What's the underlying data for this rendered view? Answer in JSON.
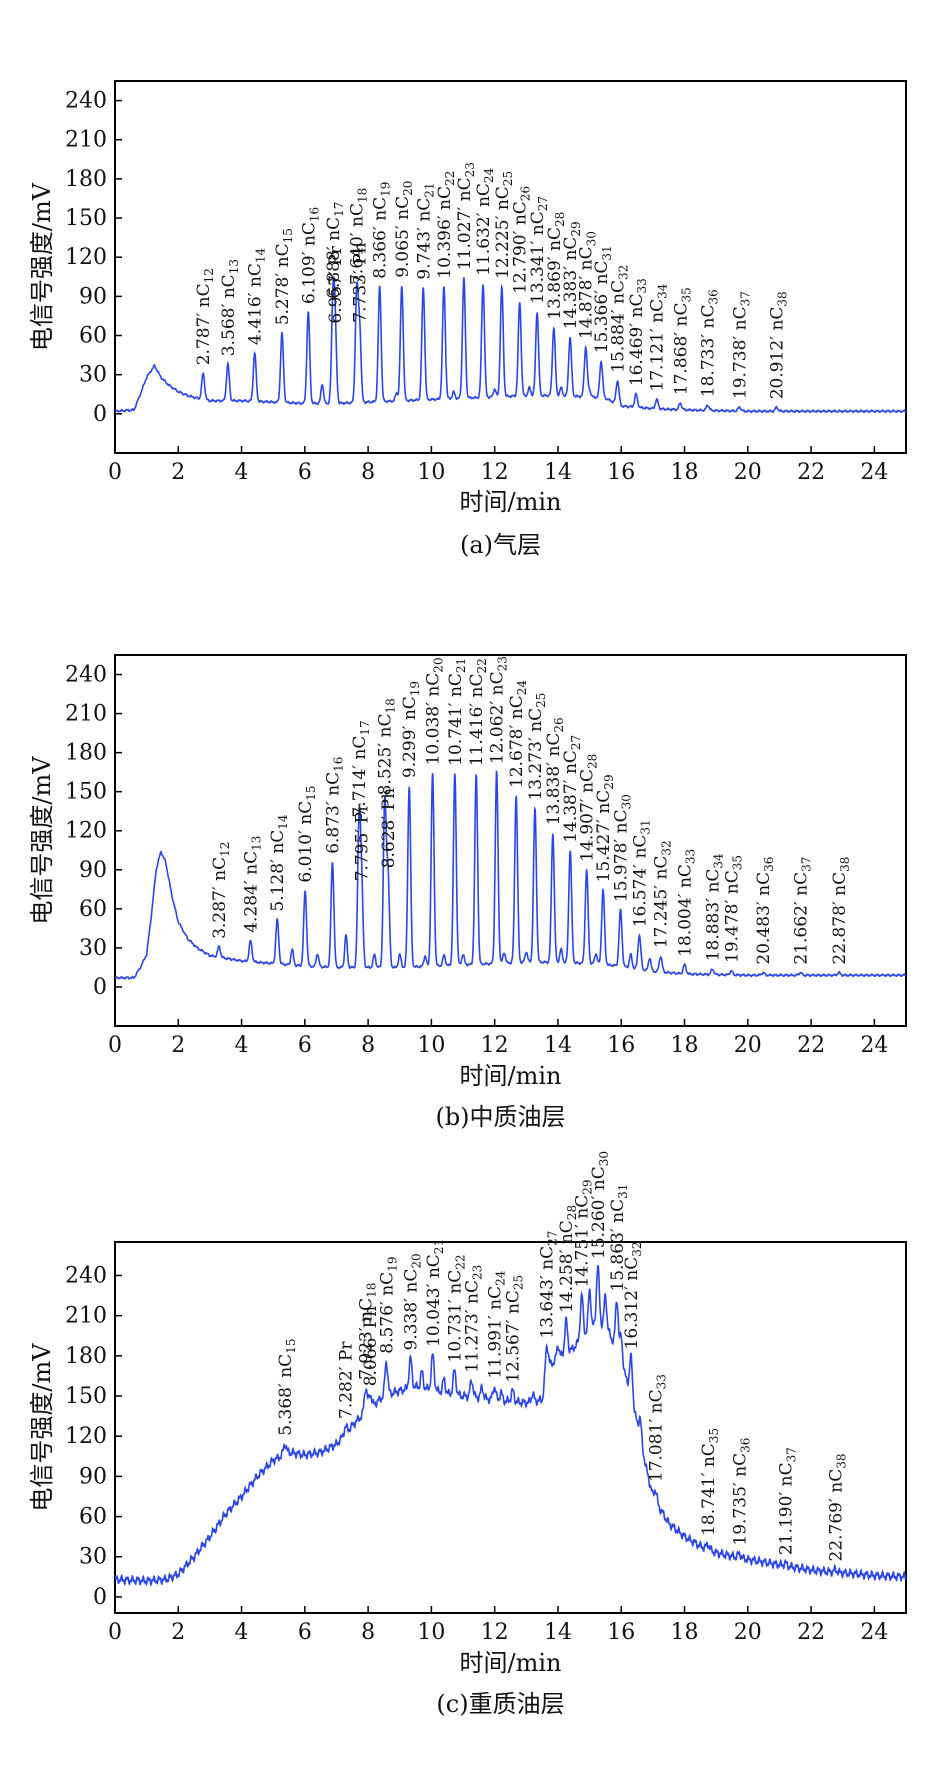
{
  "colors": {
    "line": "#2a46e6",
    "axis": "#000000",
    "text": "#111111"
  },
  "chart_data": [
    {
      "type": "line",
      "caption": "(a)气层",
      "xlabel": "时间/min",
      "ylabel": "电信号强度/mV",
      "xlim": [
        0,
        25
      ],
      "ylim": [
        -30,
        255
      ],
      "xticks": [
        0,
        2,
        4,
        6,
        8,
        10,
        12,
        14,
        16,
        18,
        20,
        22,
        24
      ],
      "yticks": [
        0,
        30,
        60,
        90,
        120,
        150,
        180,
        210,
        240
      ],
      "grid": false,
      "baseline": [
        [
          0,
          2
        ],
        [
          0.6,
          3
        ],
        [
          0.8,
          15
        ],
        [
          1.0,
          28
        ],
        [
          1.25,
          37
        ],
        [
          1.45,
          28
        ],
        [
          1.7,
          22
        ],
        [
          2.0,
          17
        ],
        [
          2.3,
          14
        ],
        [
          2.6,
          12
        ],
        [
          3.0,
          10
        ],
        [
          3.5,
          10
        ],
        [
          4,
          10
        ],
        [
          5,
          9
        ],
        [
          6,
          8
        ],
        [
          7,
          8
        ],
        [
          8,
          9
        ],
        [
          9,
          10
        ],
        [
          10,
          11
        ],
        [
          11,
          12
        ],
        [
          12,
          13
        ],
        [
          13,
          14
        ],
        [
          14,
          14
        ],
        [
          15,
          13
        ],
        [
          15.5,
          12
        ],
        [
          16,
          6
        ],
        [
          17,
          4
        ],
        [
          18,
          3
        ],
        [
          20,
          2
        ],
        [
          22,
          2
        ],
        [
          25,
          2
        ]
      ],
      "peaks": [
        {
          "rt": 2.787,
          "label": "2.787′ nC",
          "sub": "12",
          "h": 20
        },
        {
          "rt": 3.568,
          "label": "3.568′ nC",
          "sub": "13",
          "h": 28
        },
        {
          "rt": 4.416,
          "label": "4.416′ nC",
          "sub": "14",
          "h": 37
        },
        {
          "rt": 5.278,
          "label": "5.278′ nC",
          "sub": "15",
          "h": 53
        },
        {
          "rt": 6.109,
          "label": "6.109′ nC",
          "sub": "16",
          "h": 70
        },
        {
          "rt": 6.888,
          "label": "6.888′ nC",
          "sub": "17",
          "h": 74
        },
        {
          "rt": 6.957,
          "label": "6.957′ Pr",
          "sub": "",
          "h": 55
        },
        {
          "rt": 7.64,
          "label": "7.640′ nC",
          "sub": "18",
          "h": 84
        },
        {
          "rt": 7.733,
          "label": "7.733′ Ph",
          "sub": "",
          "h": 55
        },
        {
          "rt": 8.366,
          "label": "8.366′ nC",
          "sub": "19",
          "h": 88
        },
        {
          "rt": 9.065,
          "label": "9.065′ nC",
          "sub": "20",
          "h": 88
        },
        {
          "rt": 9.743,
          "label": "9.743′ nC",
          "sub": "21",
          "h": 86
        },
        {
          "rt": 10.396,
          "label": "10.396′ nC",
          "sub": "22",
          "h": 86
        },
        {
          "rt": 11.027,
          "label": "11.027′ nC",
          "sub": "23",
          "h": 92
        },
        {
          "rt": 11.632,
          "label": "11.632′ nC",
          "sub": "24",
          "h": 87
        },
        {
          "rt": 12.225,
          "label": "12.225′ nC",
          "sub": "25",
          "h": 84
        },
        {
          "rt": 12.79,
          "label": "12.790′ nC",
          "sub": "26",
          "h": 72
        },
        {
          "rt": 13.341,
          "label": "13.341′ nC",
          "sub": "27",
          "h": 64
        },
        {
          "rt": 13.869,
          "label": "13.869′ nC",
          "sub": "28",
          "h": 52
        },
        {
          "rt": 14.383,
          "label": "14.383′ nC",
          "sub": "29",
          "h": 45
        },
        {
          "rt": 14.878,
          "label": "14.878′ nC",
          "sub": "30",
          "h": 38
        },
        {
          "rt": 15.366,
          "label": "15.366′ nC",
          "sub": "31",
          "h": 28
        },
        {
          "rt": 15.884,
          "label": "15.884′ nC",
          "sub": "32",
          "h": 18
        },
        {
          "rt": 16.469,
          "label": "16.469′ nC",
          "sub": "33",
          "h": 10
        },
        {
          "rt": 17.121,
          "label": "17.121′ nC",
          "sub": "34",
          "h": 7
        },
        {
          "rt": 17.868,
          "label": "17.868′ nC",
          "sub": "35",
          "h": 5
        },
        {
          "rt": 18.733,
          "label": "18.733′ nC",
          "sub": "36",
          "h": 4
        },
        {
          "rt": 19.738,
          "label": "19.738′ nC",
          "sub": "37",
          "h": 3
        },
        {
          "rt": 20.912,
          "label": "20.912′ nC",
          "sub": "38",
          "h": 3
        }
      ],
      "minor": [
        [
          6.55,
          15
        ],
        [
          8.9,
          6
        ],
        [
          10.7,
          5
        ],
        [
          12.0,
          6
        ],
        [
          13.1,
          6
        ],
        [
          14.1,
          6
        ],
        [
          15.0,
          5
        ]
      ]
    },
    {
      "type": "line",
      "caption": "(b)中质油层",
      "xlabel": "时间/min",
      "ylabel": "电信号强度/mV",
      "xlim": [
        0,
        25
      ],
      "ylim": [
        -30,
        255
      ],
      "xticks": [
        0,
        2,
        4,
        6,
        8,
        10,
        12,
        14,
        16,
        18,
        20,
        22,
        24
      ],
      "yticks": [
        0,
        30,
        60,
        90,
        120,
        150,
        180,
        210,
        240
      ],
      "grid": false,
      "baseline": [
        [
          0,
          7
        ],
        [
          0.6,
          7
        ],
        [
          0.8,
          15
        ],
        [
          1.0,
          25
        ],
        [
          1.15,
          55
        ],
        [
          1.3,
          90
        ],
        [
          1.45,
          104
        ],
        [
          1.6,
          96
        ],
        [
          1.8,
          70
        ],
        [
          2.0,
          50
        ],
        [
          2.3,
          37
        ],
        [
          2.6,
          30
        ],
        [
          3.0,
          24
        ],
        [
          3.5,
          22
        ],
        [
          4.0,
          20
        ],
        [
          5,
          18
        ],
        [
          6,
          16
        ],
        [
          7,
          15
        ],
        [
          8,
          15
        ],
        [
          9,
          15
        ],
        [
          10,
          16
        ],
        [
          11,
          17
        ],
        [
          12,
          18
        ],
        [
          13,
          19
        ],
        [
          14,
          19
        ],
        [
          15,
          18
        ],
        [
          16,
          16
        ],
        [
          17,
          12
        ],
        [
          18,
          10
        ],
        [
          20,
          9
        ],
        [
          22,
          9
        ],
        [
          25,
          9
        ]
      ],
      "peaks": [
        {
          "rt": 3.287,
          "label": "3.287′ nC",
          "sub": "12",
          "h": 8
        },
        {
          "rt": 4.284,
          "label": "4.284′ nC",
          "sub": "13",
          "h": 16
        },
        {
          "rt": 5.128,
          "label": "5.128′ nC",
          "sub": "14",
          "h": 34
        },
        {
          "rt": 6.01,
          "label": "6.010′ nC",
          "sub": "15",
          "h": 58
        },
        {
          "rt": 6.873,
          "label": "6.873′ nC",
          "sub": "16",
          "h": 81
        },
        {
          "rt": 7.714,
          "label": "7.714′ nC",
          "sub": "17",
          "h": 109
        },
        {
          "rt": 7.795,
          "label": "7.795′ Pr",
          "sub": "",
          "h": 60
        },
        {
          "rt": 8.525,
          "label": "8.525′ nC",
          "sub": "18",
          "h": 126
        },
        {
          "rt": 8.628,
          "label": "8.628′ Ph",
          "sub": "",
          "h": 70
        },
        {
          "rt": 9.299,
          "label": "9.299′ nC",
          "sub": "19",
          "h": 139
        },
        {
          "rt": 10.038,
          "label": "10.038′ nC",
          "sub": "20",
          "h": 148
        },
        {
          "rt": 10.741,
          "label": "10.741′ nC",
          "sub": "21",
          "h": 147
        },
        {
          "rt": 11.416,
          "label": "11.416′ nC",
          "sub": "22",
          "h": 146
        },
        {
          "rt": 12.062,
          "label": "12.062′ nC",
          "sub": "23",
          "h": 147
        },
        {
          "rt": 12.678,
          "label": "12.678′ nC",
          "sub": "24",
          "h": 128
        },
        {
          "rt": 13.273,
          "label": "13.273′ nC",
          "sub": "25",
          "h": 118
        },
        {
          "rt": 13.838,
          "label": "13.838′ nC",
          "sub": "26",
          "h": 99
        },
        {
          "rt": 14.387,
          "label": "14.387′ nC",
          "sub": "27",
          "h": 86
        },
        {
          "rt": 14.907,
          "label": "14.907′ nC",
          "sub": "28",
          "h": 72
        },
        {
          "rt": 15.427,
          "label": "15.427′ nC",
          "sub": "29",
          "h": 57
        },
        {
          "rt": 15.978,
          "label": "15.978′ nC",
          "sub": "30",
          "h": 43
        },
        {
          "rt": 16.574,
          "label": "16.574′ nC",
          "sub": "31",
          "h": 26
        },
        {
          "rt": 17.245,
          "label": "17.245′ nC",
          "sub": "32",
          "h": 12
        },
        {
          "rt": 18.004,
          "label": "18.004′ nC",
          "sub": "33",
          "h": 7
        },
        {
          "rt": 18.883,
          "label": "18.883′ nC",
          "sub": "34",
          "h": 4
        },
        {
          "rt": 19.478,
          "label": "19.478′ nC",
          "sub": "35",
          "h": 3
        },
        {
          "rt": 20.483,
          "label": "20.483′ nC",
          "sub": "36",
          "h": 2
        },
        {
          "rt": 21.662,
          "label": "21.662′ nC",
          "sub": "37",
          "h": 2
        },
        {
          "rt": 22.878,
          "label": "22.878′ nC",
          "sub": "38",
          "h": 2
        }
      ],
      "minor": [
        [
          5.6,
          12
        ],
        [
          6.4,
          10
        ],
        [
          7.3,
          25
        ],
        [
          8.2,
          10
        ],
        [
          9.0,
          10
        ],
        [
          9.8,
          8
        ],
        [
          10.4,
          8
        ],
        [
          11.0,
          8
        ],
        [
          12.3,
          8
        ],
        [
          13.0,
          8
        ],
        [
          14.1,
          10
        ],
        [
          15.2,
          8
        ],
        [
          16.3,
          10
        ],
        [
          16.9,
          10
        ]
      ]
    },
    {
      "type": "line",
      "caption": "(c)重质油层",
      "xlabel": "时间/min",
      "ylabel": "电信号强度/mV",
      "xlim": [
        0,
        25
      ],
      "ylim": [
        -12,
        265
      ],
      "xticks": [
        0,
        2,
        4,
        6,
        8,
        10,
        12,
        14,
        16,
        18,
        20,
        22,
        24
      ],
      "yticks": [
        0,
        30,
        60,
        90,
        120,
        150,
        180,
        210,
        240
      ],
      "grid": false,
      "baseline": [
        [
          0,
          13
        ],
        [
          1.0,
          12
        ],
        [
          1.6,
          13
        ],
        [
          2.0,
          17
        ],
        [
          2.5,
          30
        ],
        [
          3.0,
          45
        ],
        [
          3.5,
          62
        ],
        [
          4.0,
          75
        ],
        [
          4.5,
          90
        ],
        [
          5.0,
          102
        ],
        [
          5.5,
          108
        ],
        [
          6.0,
          106
        ],
        [
          6.5,
          108
        ],
        [
          7.0,
          114
        ],
        [
          7.5,
          128
        ],
        [
          8.0,
          140
        ],
        [
          8.5,
          150
        ],
        [
          9.0,
          154
        ],
        [
          9.5,
          157
        ],
        [
          10.0,
          155
        ],
        [
          10.5,
          152
        ],
        [
          11.0,
          150
        ],
        [
          11.5,
          149
        ],
        [
          12.0,
          147
        ],
        [
          12.5,
          146
        ],
        [
          13.0,
          145
        ],
        [
          13.5,
          147
        ],
        [
          13.7,
          172
        ],
        [
          14.0,
          178
        ],
        [
          14.5,
          186
        ],
        [
          15.0,
          200
        ],
        [
          15.3,
          205
        ],
        [
          15.6,
          198
        ],
        [
          15.9,
          182
        ],
        [
          16.2,
          160
        ],
        [
          16.5,
          130
        ],
        [
          16.8,
          95
        ],
        [
          17.0,
          75
        ],
        [
          17.5,
          55
        ],
        [
          18.0,
          45
        ],
        [
          18.5,
          38
        ],
        [
          19.0,
          33
        ],
        [
          20,
          28
        ],
        [
          21,
          24
        ],
        [
          22,
          20
        ],
        [
          23,
          18
        ],
        [
          24,
          16
        ],
        [
          25,
          15
        ]
      ],
      "peaks": [
        {
          "rt": 5.368,
          "label": "5.368′ nC",
          "sub": "15",
          "h": 8
        },
        {
          "rt": 7.282,
          "label": "7.282′ Pr",
          "sub": "",
          "h": 5
        },
        {
          "rt": 7.923,
          "label": "7.923′ nC",
          "sub": "18",
          "h": 18
        },
        {
          "rt": 8.066,
          "label": "8.066′ Ph",
          "sub": "",
          "h": 10
        },
        {
          "rt": 8.576,
          "label": "8.576′ nC",
          "sub": "19",
          "h": 25
        },
        {
          "rt": 9.338,
          "label": "9.338′ nC",
          "sub": "20",
          "h": 22
        },
        {
          "rt": 10.043,
          "label": "10.043′ nC",
          "sub": "21",
          "h": 26
        },
        {
          "rt": 10.731,
          "label": "10.731′ nC",
          "sub": "22",
          "h": 18
        },
        {
          "rt": 11.273,
          "label": "11.273′ nC",
          "sub": "23",
          "h": 12
        },
        {
          "rt": 11.991,
          "label": "11.991′ nC",
          "sub": "24",
          "h": 10
        },
        {
          "rt": 12.567,
          "label": "12.567′ nC",
          "sub": "25",
          "h": 8
        },
        {
          "rt": 13.643,
          "label": "13.643′ nC",
          "sub": "27",
          "h": 22
        },
        {
          "rt": 14.258,
          "label": "14.258′ nC",
          "sub": "28",
          "h": 24
        },
        {
          "rt": 14.751,
          "label": "14.751′ nC",
          "sub": "29",
          "h": 32
        },
        {
          "rt": 15.26,
          "label": "15.260′ nC",
          "sub": "30",
          "h": 42
        },
        {
          "rt": 15.863,
          "label": "15.863′ nC",
          "sub": "31",
          "h": 38
        },
        {
          "rt": 16.312,
          "label": "16.312′ nC",
          "sub": "32",
          "h": 30
        },
        {
          "rt": 17.081,
          "label": "17.081′ nC",
          "sub": "33",
          "h": 8
        },
        {
          "rt": 18.741,
          "label": "18.741′ nC",
          "sub": "35",
          "h": 4
        },
        {
          "rt": 19.735,
          "label": "19.735′ nC",
          "sub": "36",
          "h": 3
        },
        {
          "rt": 21.19,
          "label": "21.190′ nC",
          "sub": "37",
          "h": 2
        },
        {
          "rt": 22.769,
          "label": "22.769′ nC",
          "sub": "38",
          "h": 2
        }
      ],
      "minor": [
        [
          9.7,
          12
        ],
        [
          10.4,
          10
        ],
        [
          11.6,
          8
        ],
        [
          12.2,
          6
        ],
        [
          13.2,
          6
        ],
        [
          14.0,
          10
        ],
        [
          15.0,
          30
        ],
        [
          15.5,
          25
        ],
        [
          16.0,
          20
        ],
        [
          16.6,
          15
        ]
      ]
    }
  ]
}
